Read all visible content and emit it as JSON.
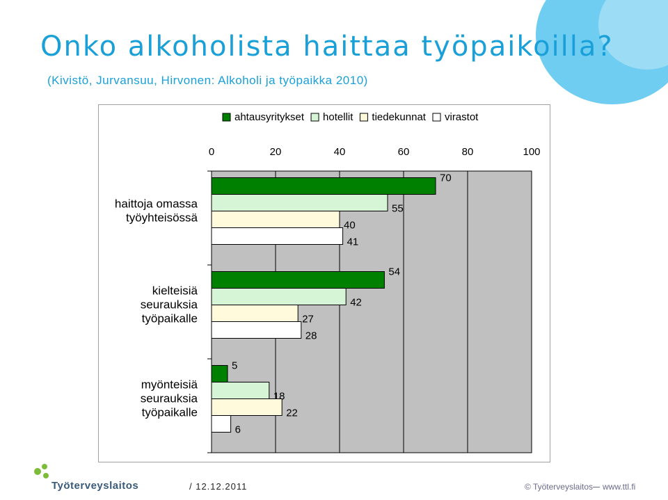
{
  "slide": {
    "title": "Onko alkoholista haittaa työpaikoilla?",
    "subtitle": "(Kivistö, Jurvansuu, Hirvonen: Alkoholi ja työpaikka 2010)",
    "footer_date": "/ 12.12.2011",
    "footer_copyright": "© Työterveyslaitos",
    "footer_url": "www.ttl.fi",
    "logo_text": "Työterveyslaitos",
    "accent_color": "#1aa0d8"
  },
  "chart_data": {
    "type": "bar",
    "orientation": "horizontal",
    "categories": [
      "haittoja omassa työyhteisössä",
      "kielteisiä seurauksia työpaikalle",
      "myönteisiä seurauksia työpaikalle"
    ],
    "category_lines": [
      [
        "haittoja omassa",
        "työyhteisössä"
      ],
      [
        "kielteisiä",
        "seurauksia",
        "työpaikalle"
      ],
      [
        "myönteisiä",
        "seurauksia",
        "työpaikalle"
      ]
    ],
    "series": [
      {
        "name": "ahtausyritykset",
        "color": "#008000",
        "values": [
          70,
          54,
          5
        ]
      },
      {
        "name": "hotellit",
        "color": "#d6f5d6",
        "values": [
          55,
          42,
          18
        ]
      },
      {
        "name": "tiedekunnat",
        "color": "#fffadb",
        "values": [
          40,
          27,
          22
        ]
      },
      {
        "name": "virastot",
        "color": "#ffffff",
        "values": [
          41,
          28,
          6
        ]
      }
    ],
    "xlim": [
      0,
      100
    ],
    "xticks": [
      "0",
      "20",
      "40",
      "60",
      "80",
      "100"
    ],
    "xaxis_position": "top",
    "legend_position": "top",
    "plot_background": "#c0c0c0",
    "grid": "vertical"
  }
}
